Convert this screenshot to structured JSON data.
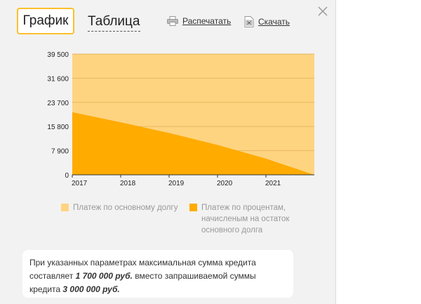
{
  "tabs": {
    "graph": "График",
    "table": "Таблица"
  },
  "actions": {
    "print": {
      "label": "Распечатать",
      "icon": "printer-icon"
    },
    "download": {
      "label": "Скачать",
      "icon": "spreadsheet-icon"
    }
  },
  "close_icon": "close-icon",
  "colors": {
    "accent": "#fdbf2d",
    "principal": "#ffd480",
    "interest": "#ffab00"
  },
  "chart_data": {
    "type": "area",
    "x": [
      2017,
      2018,
      2019,
      2020,
      2021,
      2022
    ],
    "x_tick_labels": [
      "2017",
      "2018",
      "2019",
      "2020",
      "2021"
    ],
    "y_tick_labels": [
      "0",
      "7 900",
      "15 800",
      "23 700",
      "31 600",
      "39 500"
    ],
    "ylim": [
      0,
      39500
    ],
    "stacked": true,
    "grid": true,
    "series": [
      {
        "name": "Платеж по процентам, начисленым на остаток основного долга",
        "values": [
          20500,
          17200,
          13700,
          9800,
          5300,
          0
        ]
      },
      {
        "name": "Платеж по основному долгу",
        "values": [
          19000,
          22300,
          25800,
          29700,
          34200,
          39500
        ]
      }
    ],
    "legend_position": "bottom"
  },
  "legend": {
    "principal": "Платеж по основному долгу",
    "interest": "Платеж по процентам, начисленым на остаток основного долга"
  },
  "notice": {
    "text_before": "При указанных параметрах максимальная сумма кредита составляет ",
    "max_amount": "1 700 000 руб.",
    "text_middle": " вместо запрашиваемой суммы кредита ",
    "requested_amount": "3 000 000 руб."
  }
}
